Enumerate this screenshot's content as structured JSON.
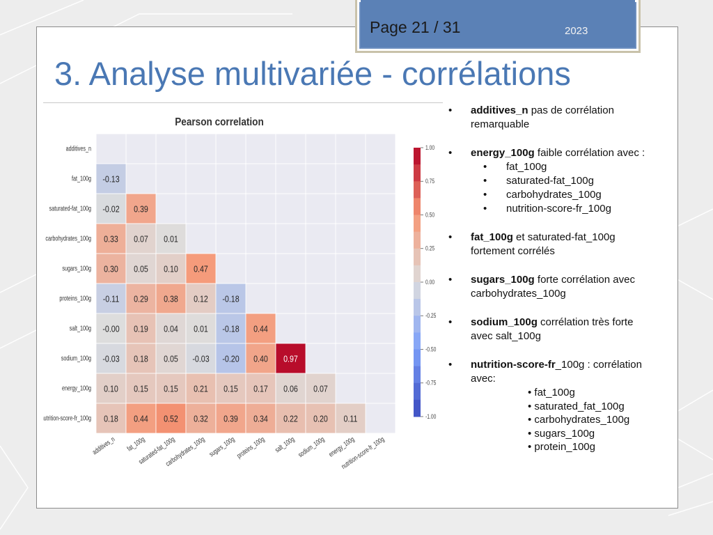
{
  "header": {
    "page": "Page 21 / 31",
    "year": "2023"
  },
  "title": "3. Analyse multivariée - corrélations",
  "chart_data": {
    "type": "heatmap",
    "title": "Pearson correlation",
    "variables": [
      "additives_n",
      "fat_100g",
      "saturated-fat_100g",
      "carbohydrates_100g",
      "sugars_100g",
      "proteins_100g",
      "salt_100g",
      "sodium_100g",
      "energy_100g",
      "nutrition-score-fr_100g"
    ],
    "matrix_lower": [
      [],
      [
        -0.13
      ],
      [
        -0.02,
        0.39
      ],
      [
        0.33,
        0.07,
        0.01
      ],
      [
        0.3,
        0.05,
        0.1,
        0.47
      ],
      [
        -0.11,
        0.29,
        0.38,
        0.12,
        -0.18
      ],
      [
        -0.0,
        0.19,
        0.04,
        0.01,
        -0.18,
        0.44
      ],
      [
        -0.03,
        0.18,
        0.05,
        -0.03,
        -0.2,
        0.4,
        0.97
      ],
      [
        0.1,
        0.15,
        0.15,
        0.21,
        0.15,
        0.17,
        0.06,
        0.07
      ],
      [
        0.18,
        0.44,
        0.52,
        0.32,
        0.39,
        0.34,
        0.22,
        0.2,
        0.11
      ]
    ],
    "cell_labels": [
      [],
      [
        "-0.13"
      ],
      [
        "-0.02",
        "0.39"
      ],
      [
        "0.33",
        "0.07",
        "0.01"
      ],
      [
        "0.30",
        "0.05",
        "0.10",
        "0.47"
      ],
      [
        "-0.11",
        "0.29",
        "0.38",
        "0.12",
        "-0.18"
      ],
      [
        "-0.00",
        "0.19",
        "0.04",
        "0.01",
        "-0.18",
        "0.44"
      ],
      [
        "-0.03",
        "0.18",
        "0.05",
        "-0.03",
        "-0.20",
        "0.40",
        "0.97"
      ],
      [
        "0.10",
        "0.15",
        "0.15",
        "0.21",
        "0.15",
        "0.17",
        "0.06",
        "0.07"
      ],
      [
        "0.18",
        "0.44",
        "0.52",
        "0.32",
        "0.39",
        "0.34",
        "0.22",
        "0.20",
        "0.11"
      ]
    ],
    "colorbar": {
      "range": [
        -1.0,
        1.0
      ],
      "ticks": [
        1.0,
        0.75,
        0.5,
        0.25,
        0.0,
        -0.25,
        -0.5,
        -0.75,
        -1.0
      ],
      "tick_labels": [
        "1.00",
        "0.75",
        "0.50",
        "0.25",
        "0.00",
        "-0.25",
        "-0.50",
        "-0.75",
        "-1.00"
      ],
      "colormap": "coolwarm"
    }
  },
  "bullets": [
    {
      "bold": "additives_n",
      "text": " pas de corrélation remarquable"
    },
    {
      "bold": "energy_100g",
      "text": "  faible corrélation avec :",
      "sub": [
        "fat_100g",
        "saturated-fat_100g",
        "carbohydrates_100g",
        "nutrition-score-fr_100g"
      ]
    },
    {
      "bold": "fat_100g",
      "text": " et saturated-fat_100g fortement corrélés"
    },
    {
      "bold": "sugars_100g",
      "text": " forte corrélation avec carbohydrates_100g"
    },
    {
      "bold": "sodium_100g",
      "text": " corrélation très forte avec salt_100g"
    },
    {
      "bold": "nutrition-score-fr",
      "text": "_100g : corrélation avec:",
      "sub2": [
        "• fat_100g",
        "• saturated_fat_100g",
        "• carbohydrates_100g",
        "• sugars_100g",
        "• protein_100g"
      ]
    }
  ],
  "bullet_glyph": "•"
}
